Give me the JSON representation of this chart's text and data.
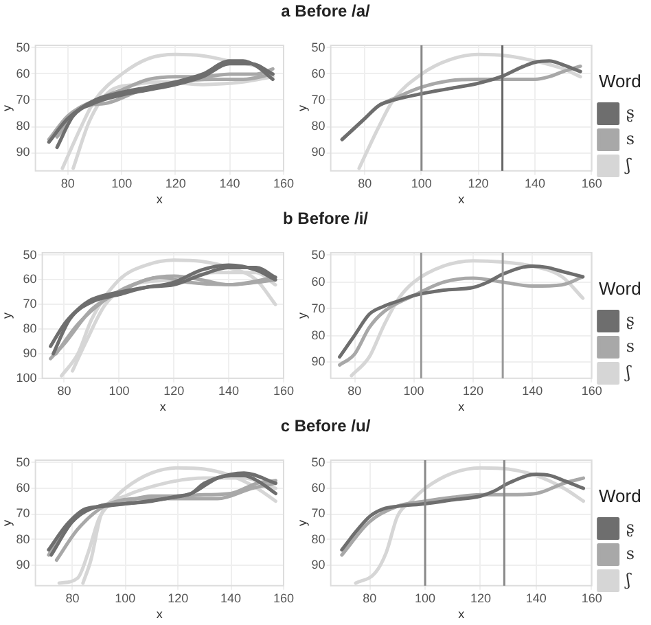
{
  "chart_data": [
    {
      "type": "line",
      "title": "a Before /a/",
      "xlabel": "x",
      "ylabel": "y",
      "xlim": [
        68,
        160
      ],
      "xticks": [
        80,
        100,
        120,
        140,
        160
      ],
      "ylim": [
        97,
        49
      ],
      "yticks": [
        50,
        60,
        70,
        80,
        90
      ],
      "grid": true,
      "marker": "none",
      "series": [
        {
          "color": "#6e6e6e",
          "x": [
            73,
            80,
            90,
            100,
            110,
            120,
            130,
            140,
            145,
            150,
            156
          ],
          "values": [
            86,
            77,
            70,
            67,
            65,
            63,
            60,
            55,
            55,
            57,
            62
          ]
        },
        {
          "color": "#6e6e6e",
          "x": [
            76,
            82,
            90,
            100,
            110,
            120,
            130,
            140,
            148,
            156
          ],
          "values": [
            88,
            76,
            71,
            68,
            66,
            64,
            61,
            56,
            56,
            60
          ]
        },
        {
          "color": "#a8a8a8",
          "x": [
            73,
            80,
            90,
            100,
            110,
            120,
            130,
            140,
            150,
            156
          ],
          "values": [
            85,
            76,
            70,
            66,
            62,
            61,
            61,
            60,
            60,
            58
          ]
        },
        {
          "color": "#a8a8a8",
          "x": [
            76,
            85,
            95,
            105,
            120,
            135,
            145,
            156
          ],
          "values": [
            84,
            73,
            71,
            67,
            63,
            62,
            62,
            60
          ]
        },
        {
          "color": "#d6d6d6",
          "x": [
            78,
            85,
            90,
            100,
            110,
            120,
            130,
            140,
            150,
            156
          ],
          "values": [
            96,
            80,
            70,
            60,
            54,
            52.5,
            53,
            55,
            57,
            60
          ]
        },
        {
          "color": "#d6d6d6",
          "x": [
            82,
            88,
            95,
            105,
            115,
            130,
            145,
            156
          ],
          "values": [
            96,
            78,
            67,
            64,
            63,
            64,
            63,
            61
          ]
        }
      ]
    },
    {
      "type": "line",
      "xlabel": "x",
      "ylabel": "y",
      "legend_title": "Word",
      "legend": "right",
      "xlim": [
        68,
        160
      ],
      "xticks": [
        80,
        100,
        120,
        140,
        160
      ],
      "ylim": [
        97,
        49
      ],
      "yticks": [
        50,
        60,
        70,
        80,
        90
      ],
      "grid": true,
      "marker": "none",
      "ref_lines": [
        {
          "axis": "x",
          "value": 100,
          "color": "#888888"
        },
        {
          "axis": "x",
          "value": 128.5,
          "color": "#666666"
        }
      ],
      "series": [
        {
          "name": "ʂ",
          "color": "#6e6e6e",
          "x": [
            72,
            80,
            85,
            90,
            100,
            110,
            120,
            128,
            135,
            140,
            145,
            150,
            156
          ],
          "values": [
            85,
            77,
            72,
            70,
            67.5,
            65.5,
            63.5,
            61,
            57.5,
            55.5,
            55,
            56.5,
            59
          ]
        },
        {
          "name": "s",
          "color": "#a8a8a8",
          "x": [
            72,
            80,
            85,
            90,
            100,
            110,
            120,
            130,
            140,
            145,
            150,
            156
          ],
          "values": [
            85,
            77,
            72,
            69.5,
            65,
            62.5,
            62,
            62,
            62,
            61,
            59,
            57
          ]
        },
        {
          "name": "ʃ",
          "color": "#d6d6d6",
          "x": [
            78,
            85,
            90,
            100,
            110,
            120,
            130,
            140,
            150,
            156
          ],
          "values": [
            96,
            80,
            70,
            60,
            54.5,
            52.5,
            53,
            55,
            58,
            61
          ]
        }
      ]
    },
    {
      "type": "line",
      "title": "b Before /i/",
      "xlabel": "x",
      "ylabel": "y",
      "xlim": [
        72,
        160
      ],
      "xticks": [
        80,
        100,
        120,
        140,
        160
      ],
      "ylim": [
        100,
        49
      ],
      "yticks": [
        50,
        60,
        70,
        80,
        90,
        100
      ],
      "grid": true,
      "marker": "none",
      "series": [
        {
          "color": "#6e6e6e",
          "x": [
            75,
            80,
            85,
            90,
            100,
            110,
            120,
            130,
            140,
            150,
            157
          ],
          "values": [
            87,
            78,
            72,
            68,
            65,
            63,
            61,
            56,
            54,
            56,
            60
          ]
        },
        {
          "color": "#6e6e6e",
          "x": [
            76,
            82,
            90,
            100,
            110,
            120,
            130,
            140,
            150,
            157
          ],
          "values": [
            90,
            76,
            69,
            66,
            63,
            62,
            58,
            55,
            55,
            59
          ]
        },
        {
          "color": "#a8a8a8",
          "x": [
            75,
            80,
            90,
            100,
            110,
            120,
            130,
            140,
            150,
            157
          ],
          "values": [
            92,
            86,
            72,
            65,
            60,
            58.5,
            60,
            62,
            61,
            60
          ]
        },
        {
          "color": "#a8a8a8",
          "x": [
            77,
            85,
            95,
            105,
            115,
            125,
            140,
            157
          ],
          "values": [
            90,
            78,
            68,
            62,
            59,
            61,
            62,
            59
          ]
        },
        {
          "color": "#d6d6d6",
          "x": [
            79,
            85,
            90,
            100,
            110,
            120,
            130,
            140,
            150,
            157
          ],
          "values": [
            99,
            90,
            76,
            60,
            54,
            52,
            52.5,
            55,
            60,
            70
          ]
        },
        {
          "color": "#d6d6d6",
          "x": [
            83,
            88,
            95,
            105,
            120,
            135,
            150,
            157
          ],
          "values": [
            97,
            85,
            70,
            62,
            60,
            57,
            57,
            62
          ]
        }
      ]
    },
    {
      "type": "line",
      "xlabel": "x",
      "ylabel": "y",
      "legend_title": "Word",
      "legend": "right",
      "xlim": [
        72,
        160
      ],
      "xticks": [
        80,
        100,
        120,
        140,
        160
      ],
      "ylim": [
        96,
        49
      ],
      "yticks": [
        50,
        60,
        70,
        80,
        90
      ],
      "grid": true,
      "marker": "none",
      "ref_lines": [
        {
          "axis": "x",
          "value": 102.5,
          "color": "#999999"
        },
        {
          "axis": "x",
          "value": 130,
          "color": "#999999"
        }
      ],
      "series": [
        {
          "name": "ʂ",
          "color": "#6e6e6e",
          "x": [
            75,
            80,
            85,
            90,
            95,
            100,
            110,
            120,
            125,
            130,
            140,
            145,
            150,
            157
          ],
          "values": [
            88,
            80,
            72,
            69,
            67,
            65,
            63,
            62,
            60,
            57,
            54,
            54.5,
            56,
            58
          ]
        },
        {
          "name": "s",
          "color": "#a8a8a8",
          "x": [
            75,
            80,
            85,
            90,
            100,
            110,
            120,
            130,
            140,
            150,
            157
          ],
          "values": [
            91,
            87,
            77,
            71,
            65,
            60,
            58.5,
            60,
            61.5,
            61,
            58
          ]
        },
        {
          "name": "ʃ",
          "color": "#d6d6d6",
          "x": [
            79,
            85,
            90,
            95,
            100,
            110,
            120,
            130,
            140,
            150,
            157
          ],
          "values": [
            95,
            88,
            76,
            66,
            60,
            54,
            52,
            52.5,
            54,
            58,
            66
          ]
        }
      ]
    },
    {
      "type": "line",
      "title": "c Before /u/",
      "xlabel": "x",
      "ylabel": "y",
      "xlim": [
        66,
        160
      ],
      "xticks": [
        80,
        100,
        120,
        140,
        160
      ],
      "ylim": [
        98,
        49
      ],
      "yticks": [
        50,
        60,
        70,
        80,
        90
      ],
      "grid": true,
      "marker": "none",
      "series": [
        {
          "color": "#6e6e6e",
          "x": [
            71,
            78,
            85,
            92,
            100,
            110,
            120,
            125,
            130,
            140,
            145,
            150,
            157
          ],
          "values": [
            84,
            74,
            68,
            67,
            66,
            65,
            63,
            62,
            58,
            55,
            55,
            57,
            62
          ]
        },
        {
          "color": "#6e6e6e",
          "x": [
            72,
            80,
            90,
            100,
            115,
            125,
            135,
            145,
            157
          ],
          "values": [
            86,
            73,
            67,
            66,
            64,
            62,
            56,
            54,
            58
          ]
        },
        {
          "color": "#a8a8a8",
          "x": [
            71,
            80,
            90,
            100,
            110,
            120,
            130,
            140,
            150,
            157
          ],
          "values": [
            86,
            72,
            67,
            65,
            63,
            63,
            62.5,
            62,
            58,
            57
          ]
        },
        {
          "color": "#a8a8a8",
          "x": [
            74,
            82,
            92,
            105,
            120,
            135,
            148,
            157
          ],
          "values": [
            88,
            76,
            67,
            64,
            64,
            64,
            60,
            58
          ]
        },
        {
          "color": "#d6d6d6",
          "x": [
            75,
            82,
            86,
            90,
            95,
            100,
            110,
            120,
            130,
            140,
            150,
            157
          ],
          "values": [
            97,
            95,
            85,
            72,
            65,
            60,
            54,
            52,
            52.5,
            55,
            60,
            65
          ]
        },
        {
          "color": "#d6d6d6",
          "x": [
            84,
            87,
            91,
            100,
            115,
            130,
            145,
            157
          ],
          "values": [
            97,
            88,
            70,
            63,
            58,
            56,
            56,
            60
          ]
        }
      ]
    },
    {
      "type": "line",
      "xlabel": "x",
      "ylabel": "y",
      "legend_title": "Word",
      "legend": "right",
      "xlim": [
        66,
        160
      ],
      "xticks": [
        80,
        100,
        120,
        140,
        160
      ],
      "ylim": [
        98,
        49
      ],
      "yticks": [
        50,
        60,
        70,
        80,
        90
      ],
      "grid": true,
      "marker": "none",
      "ref_lines": [
        {
          "axis": "x",
          "value": 100,
          "color": "#888888"
        },
        {
          "axis": "x",
          "value": 128.5,
          "color": "#888888"
        }
      ],
      "series": [
        {
          "name": "ʂ",
          "color": "#6e6e6e",
          "x": [
            70,
            75,
            80,
            85,
            90,
            100,
            110,
            120,
            125,
            130,
            140,
            145,
            150,
            157
          ],
          "values": [
            84,
            77,
            71,
            68,
            67,
            66,
            64.5,
            63,
            61,
            58,
            54.5,
            55,
            57,
            60
          ]
        },
        {
          "name": "s",
          "color": "#a8a8a8",
          "x": [
            70,
            80,
            90,
            100,
            110,
            120,
            130,
            140,
            150,
            157
          ],
          "values": [
            86,
            73,
            67,
            65,
            63.5,
            62.5,
            62.5,
            62,
            58,
            56
          ]
        },
        {
          "name": "ʃ",
          "color": "#d6d6d6",
          "x": [
            75,
            82,
            86,
            90,
            95,
            100,
            110,
            120,
            130,
            140,
            150,
            157
          ],
          "values": [
            97,
            93,
            85,
            71,
            65,
            60,
            54,
            52,
            52.5,
            55,
            60,
            65
          ]
        }
      ]
    }
  ]
}
